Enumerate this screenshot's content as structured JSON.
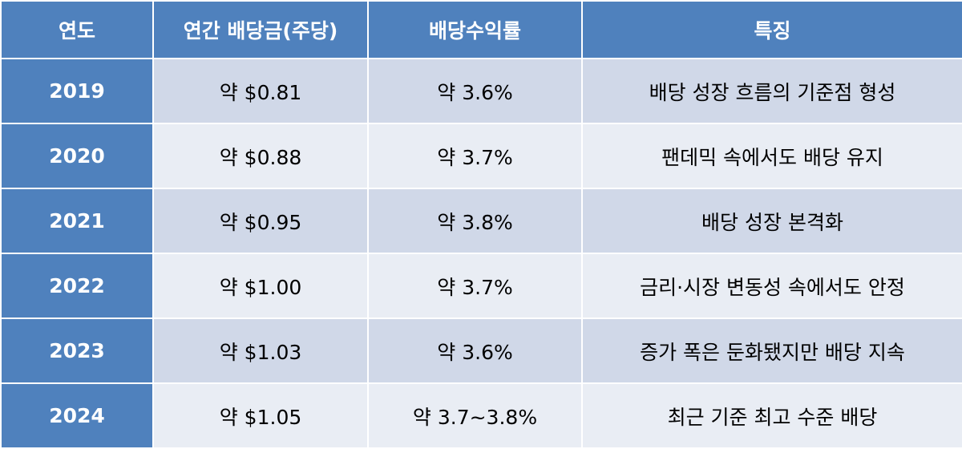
{
  "table": {
    "header": [
      "연도",
      "연간 배당금(주당)",
      "배당수익률",
      "특징"
    ],
    "rows": [
      [
        "2019",
        "약 $0.81",
        "약 3.6%",
        "배당 성장 흐름의 기준점 형성"
      ],
      [
        "2020",
        "약 $0.88",
        "약 3.7%",
        "팬데믹 속에서도 배당 유지"
      ],
      [
        "2021",
        "약 $0.95",
        "약 3.8%",
        "배당 성장 본격화"
      ],
      [
        "2022",
        "약 $1.00",
        "약 3.7%",
        "금리·시장 변동성 속에서도 안정"
      ],
      [
        "2023",
        "약 $1.03",
        "약 3.6%",
        "증가 폭은 둔화됐지만 배당 지속"
      ],
      [
        "2024",
        "약 $1.05",
        "약 3.7~3.8%",
        "최근 기준 최고 수준 배당"
      ]
    ]
  }
}
